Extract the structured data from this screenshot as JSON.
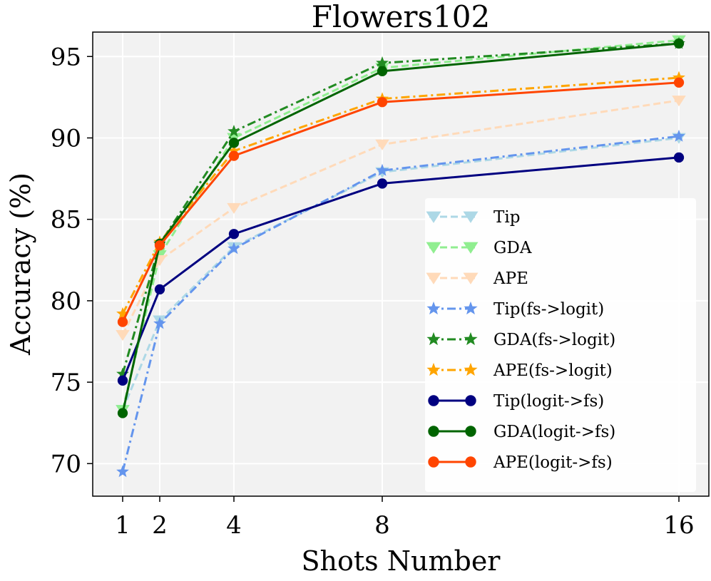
{
  "chart_data": {
    "type": "line",
    "title": "Flowers102",
    "xlabel": "Shots Number",
    "ylabel": "Accuracy (%)",
    "x": [
      1,
      2,
      4,
      8,
      16
    ],
    "xticks": [
      "1",
      "2",
      "4",
      "8",
      "16"
    ],
    "yticks": [
      "70",
      "75",
      "80",
      "85",
      "90",
      "95"
    ],
    "ylim": [
      68.0,
      96.5
    ],
    "grid": true,
    "legend_position": "lower-right",
    "series": [
      {
        "name": "Tip",
        "values": [
          73.3,
          78.8,
          83.3,
          87.9,
          90.0
        ],
        "color": "#add8e6",
        "dash": "dashed",
        "marker": "triangle-down"
      },
      {
        "name": "GDA",
        "values": [
          73.3,
          82.8,
          90.0,
          94.3,
          96.0
        ],
        "color": "#90ee90",
        "dash": "dashed",
        "marker": "triangle-down"
      },
      {
        "name": "APE",
        "values": [
          77.9,
          82.5,
          85.7,
          89.6,
          92.3
        ],
        "color": "#ffdab9",
        "dash": "dashed",
        "marker": "triangle-down"
      },
      {
        "name": "Tip(fs->logit)",
        "values": [
          69.5,
          78.6,
          83.2,
          88.0,
          90.1
        ],
        "color": "#6495ed",
        "dash": "dashdot",
        "marker": "star"
      },
      {
        "name": "GDA(fs->logit)",
        "values": [
          75.5,
          83.5,
          90.4,
          94.6,
          95.8
        ],
        "color": "#228b22",
        "dash": "dashdot",
        "marker": "star"
      },
      {
        "name": "APE(fs->logit)",
        "values": [
          79.2,
          83.6,
          89.2,
          92.4,
          93.7
        ],
        "color": "#ffa500",
        "dash": "dashdot",
        "marker": "star"
      },
      {
        "name": "Tip(logit->fs)",
        "values": [
          75.1,
          80.7,
          84.1,
          87.2,
          88.8
        ],
        "color": "#000080",
        "dash": "solid",
        "marker": "circle"
      },
      {
        "name": "GDA(logit->fs)",
        "values": [
          73.1,
          83.5,
          89.7,
          94.1,
          95.8
        ],
        "color": "#006400",
        "dash": "solid",
        "marker": "circle"
      },
      {
        "name": "APE(logit->fs)",
        "values": [
          78.7,
          83.4,
          88.9,
          92.2,
          93.4
        ],
        "color": "#ff4500",
        "dash": "solid",
        "marker": "circle"
      }
    ]
  }
}
